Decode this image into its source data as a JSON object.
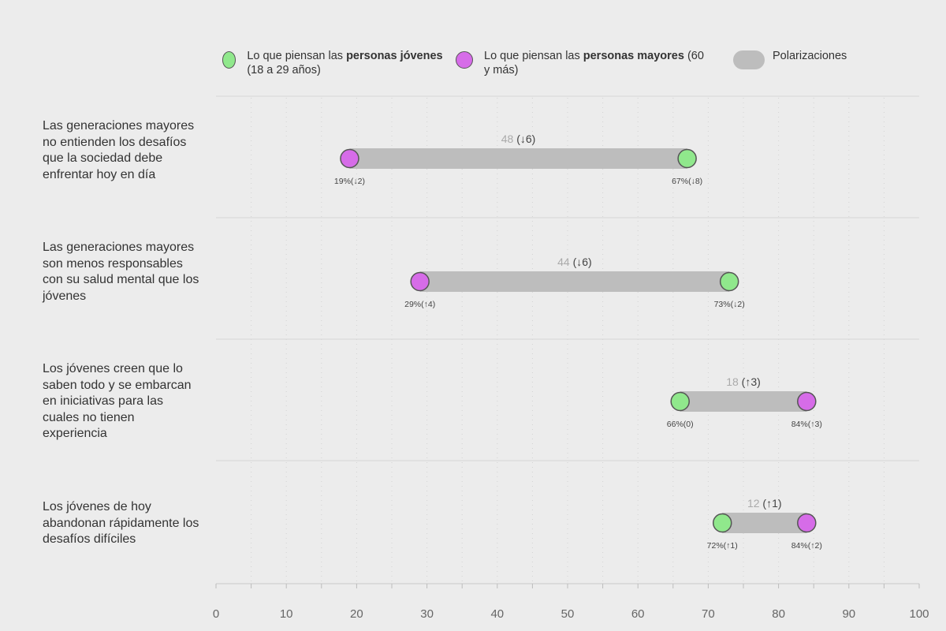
{
  "legend": {
    "young": {
      "prefix": "Lo que piensan las ",
      "bold": "personas jóvenes",
      "suffix": " (18 a 29 años)",
      "color": "#90e88c"
    },
    "older": {
      "prefix": "Lo que piensan las ",
      "bold": "personas mayores",
      "suffix": " (60 y más)",
      "color": "#d66ce8"
    },
    "polar": {
      "label": "Polarizaciones",
      "color": "#bdbdbd"
    }
  },
  "chart_data": {
    "type": "dumbbell",
    "xlim": [
      0,
      100
    ],
    "xticks": [
      0,
      10,
      20,
      30,
      40,
      50,
      60,
      70,
      80,
      90,
      100
    ],
    "series": [
      {
        "name": "personas jóvenes (18 a 29 años)",
        "color": "#90e88c"
      },
      {
        "name": "personas mayores (60 y más)",
        "color": "#d66ce8"
      }
    ],
    "rows": [
      {
        "label": "Las generaciones mayores no entienden los desafíos que la sociedad debe enfrentar hoy en día",
        "young": 67,
        "young_label": "67%(↓8)",
        "older": 19,
        "older_label": "19%(↓2)",
        "gap": "48",
        "gap_change": " (↓6)"
      },
      {
        "label": "Las generaciones mayores son menos responsables con su salud mental que los jóvenes",
        "young": 73,
        "young_label": "73%(↓2)",
        "older": 29,
        "older_label": "29%(↑4)",
        "gap": "44",
        "gap_change": " (↓6)"
      },
      {
        "label": "Los jóvenes creen que lo saben todo y se embarcan en iniciativas para las cuales no tienen experiencia",
        "young": 66,
        "young_label": "66%(0)",
        "older": 84,
        "older_label": "84%(↑3)",
        "gap": "18",
        "gap_change": " (↑3)"
      },
      {
        "label": "Los jóvenes de hoy abandonan rápidamente los desafíos difíciles",
        "young": 72,
        "young_label": "72%(↑1)",
        "older": 84,
        "older_label": "84%(↑2)",
        "gap": "12",
        "gap_change": " (↑1)"
      }
    ]
  }
}
